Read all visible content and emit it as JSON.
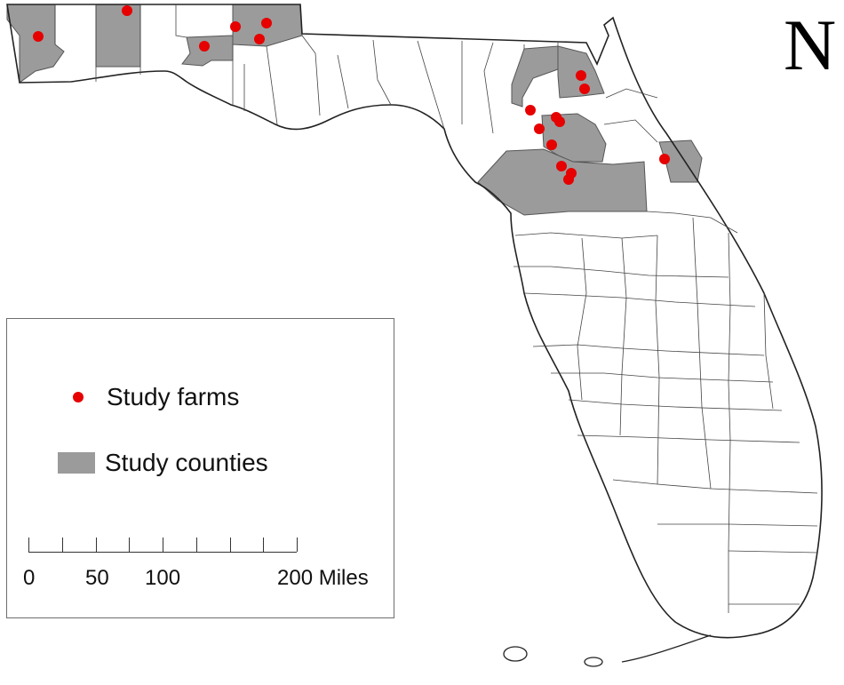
{
  "north_arrow": {
    "label": "N"
  },
  "legend": {
    "farms_label": "Study farms",
    "counties_label": "Study counties",
    "farm_color": "#e60000",
    "county_color": "#9b9b9b"
  },
  "scale_bar": {
    "labels": [
      "0",
      "50",
      "100",
      "200 Miles"
    ],
    "max_miles": 200,
    "tick_count": 9
  }
}
